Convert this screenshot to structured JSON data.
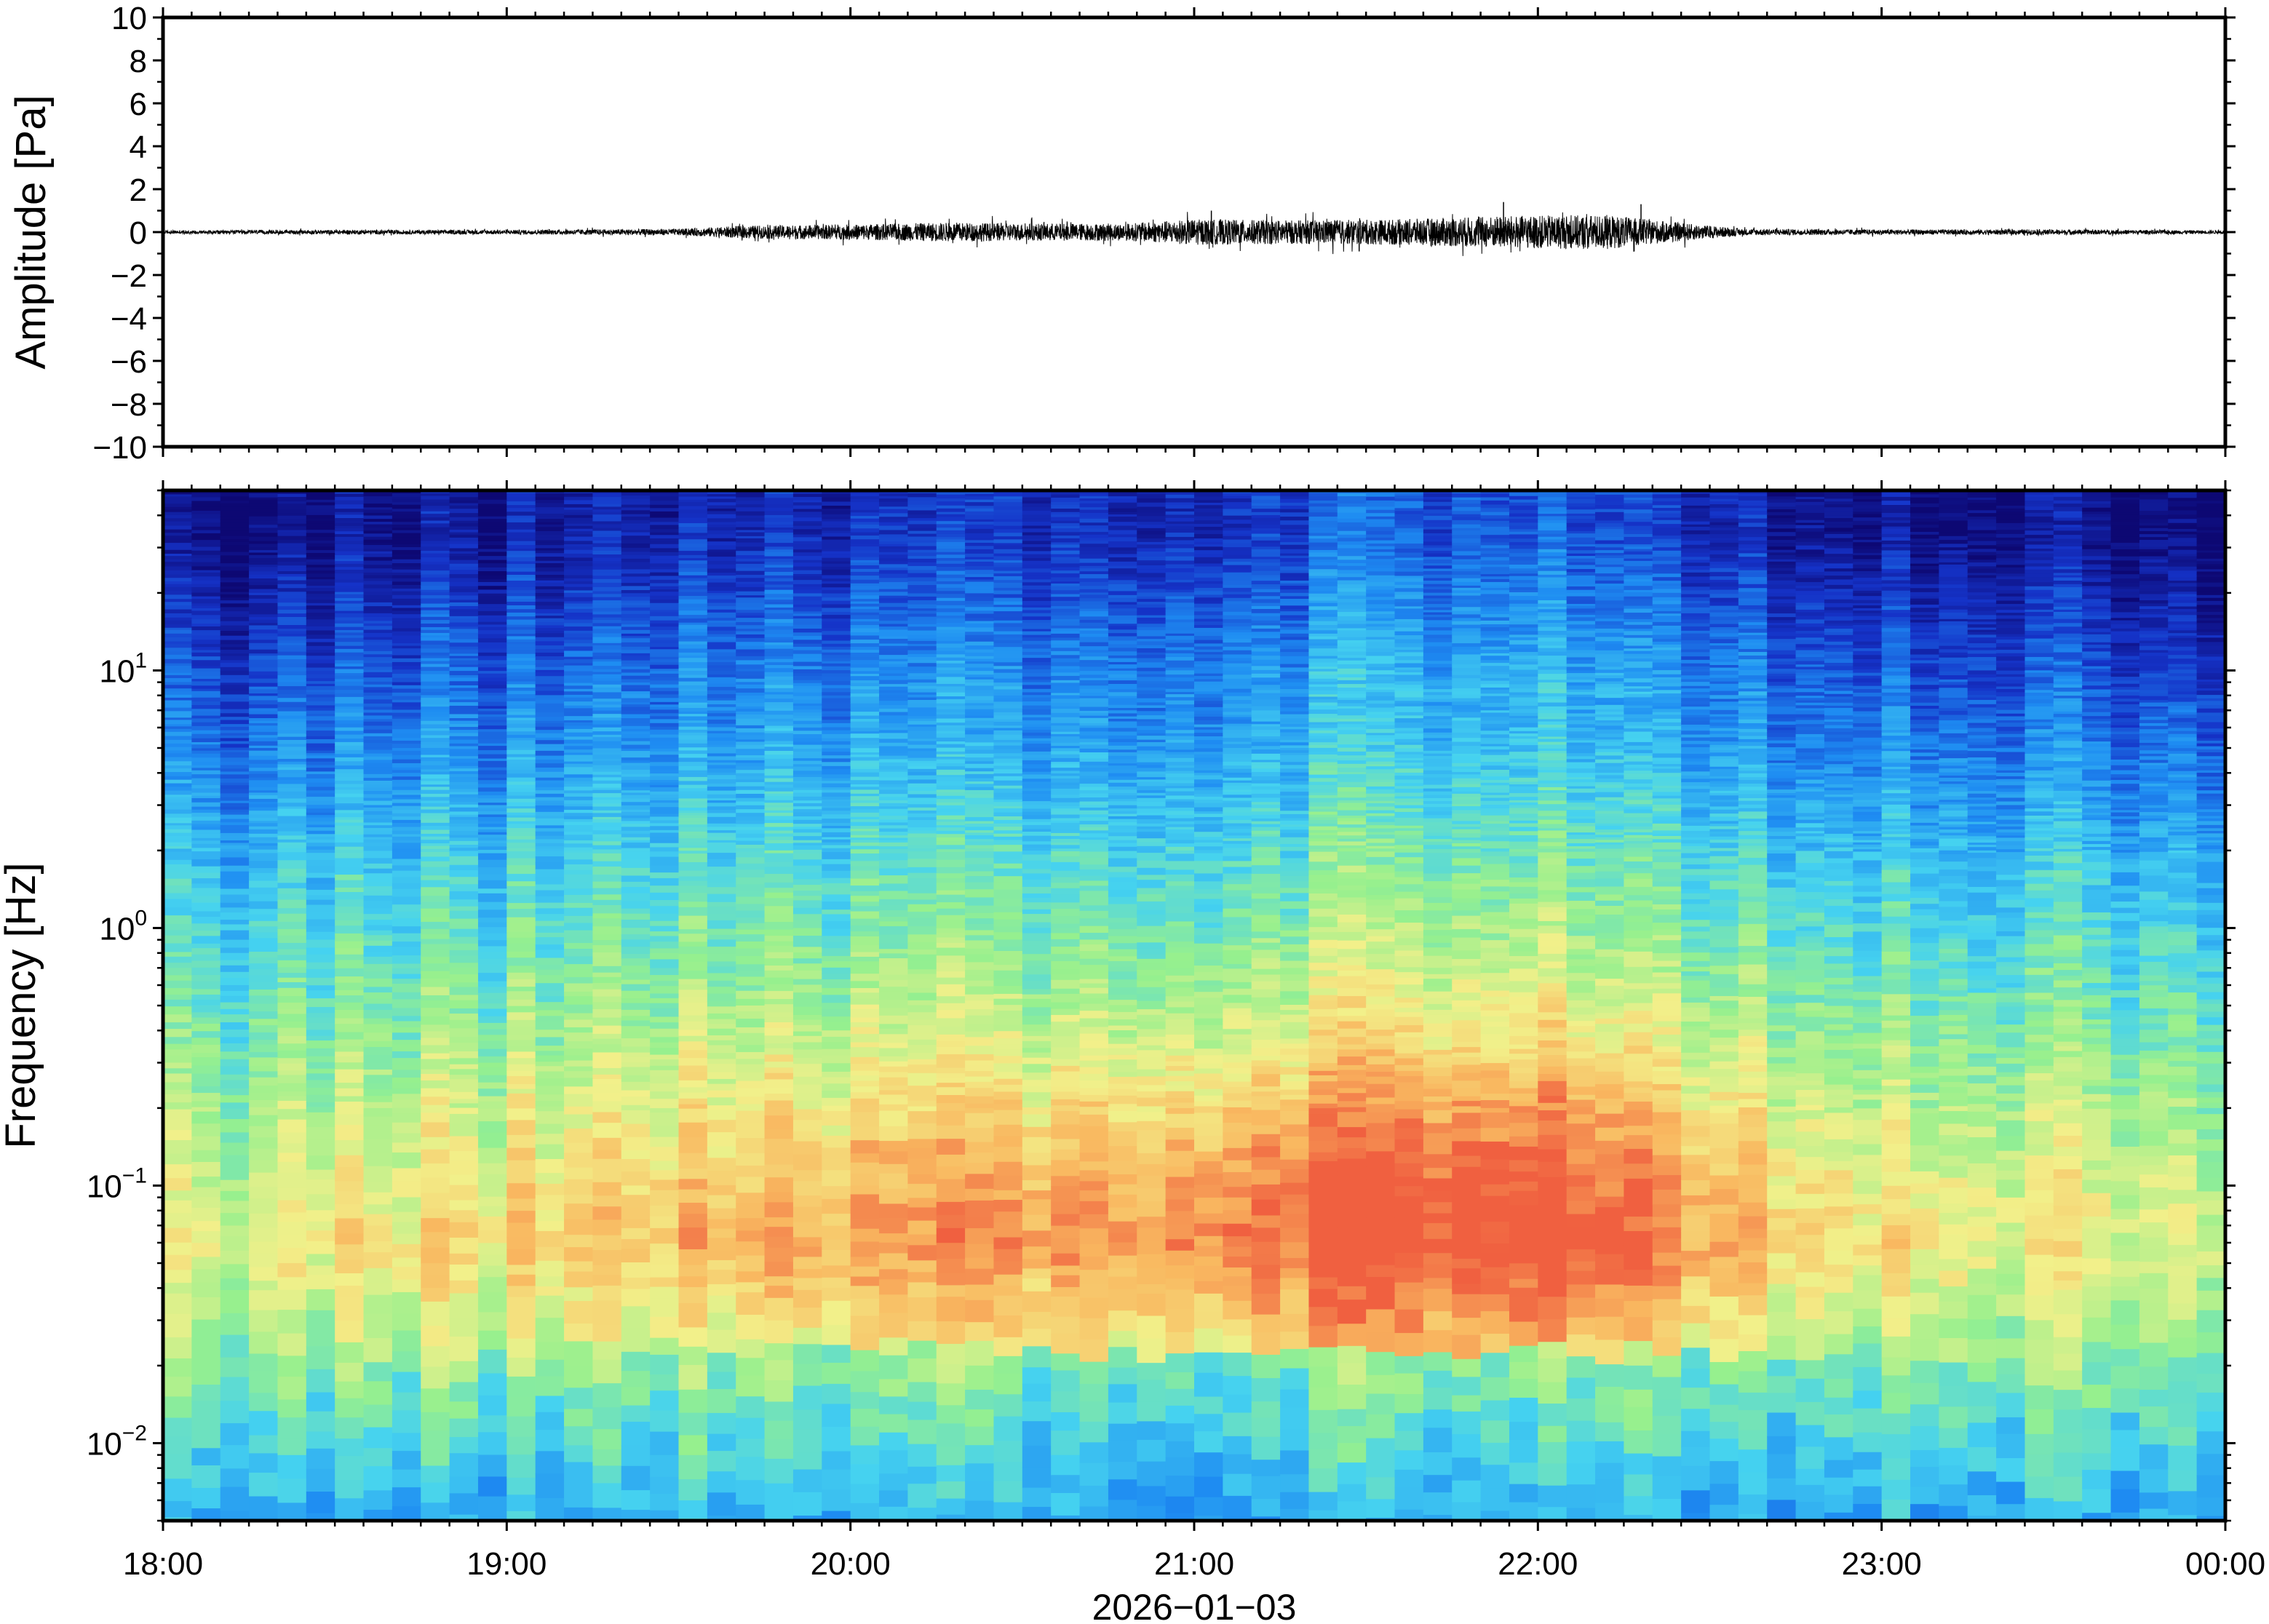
{
  "chart_data": [
    {
      "type": "line",
      "panel": "waveform",
      "xlabel": "",
      "ylabel": "Amplitude [Pa]",
      "ylim": [
        -10,
        10
      ],
      "yticks": [
        10,
        8,
        6,
        4,
        2,
        0,
        -2,
        -4,
        -6,
        -8,
        -10
      ],
      "ytick_labels": [
        "10",
        "8",
        "6",
        "4",
        "2",
        "0",
        "−2",
        "−4",
        "−6",
        "−8",
        "−10"
      ],
      "xlim": [
        "18:00",
        "00:00"
      ],
      "envelope": {
        "hours": [
          0,
          0.5,
          1,
          1.5,
          1.7,
          2,
          2.3,
          2.5,
          2.8,
          3.0,
          3.3,
          3.6,
          3.9,
          4.2,
          4.4,
          4.6,
          5,
          5.5,
          6
        ],
        "amplitude_pa": [
          0.08,
          0.1,
          0.1,
          0.15,
          0.3,
          0.35,
          0.45,
          0.4,
          0.4,
          0.6,
          0.55,
          0.6,
          0.75,
          0.8,
          0.45,
          0.15,
          0.12,
          0.12,
          0.08
        ]
      },
      "peaks": [
        {
          "hour": 3.05,
          "amplitude_pa": 1.0
        },
        {
          "hour": 3.9,
          "amplitude_pa": 1.4
        },
        {
          "hour": 4.3,
          "amplitude_pa": 1.3
        },
        {
          "hour": 4.28,
          "amplitude_pa": -0.9
        },
        {
          "hour": 3.48,
          "amplitude_pa": -0.9
        }
      ],
      "grid": false
    },
    {
      "type": "heatmap",
      "panel": "spectrogram",
      "xlabel": "2026−01−03",
      "ylabel": "Frequency [Hz]",
      "yscale": "log",
      "ylim": [
        0.005,
        50
      ],
      "yticks": [
        {
          "value": 10,
          "base": "10",
          "exp": "1"
        },
        {
          "value": 1,
          "base": "10",
          "exp": "0"
        },
        {
          "value": 0.1,
          "base": "10",
          "exp": "−1"
        },
        {
          "value": 0.01,
          "base": "10",
          "exp": "−2"
        }
      ],
      "xtick_labels": [
        "18:00",
        "19:00",
        "20:00",
        "21:00",
        "22:00",
        "23:00",
        "00:00"
      ],
      "colormap": [
        "#0d0873",
        "#1533c8",
        "#1e8cf2",
        "#45d2f0",
        "#96f08e",
        "#f2f08a",
        "#f9b860",
        "#f06040"
      ],
      "peak_power_band_hz": [
        0.04,
        0.12
      ],
      "most_active_time_range": [
        "21:00",
        "22:30"
      ],
      "grid": false
    }
  ]
}
